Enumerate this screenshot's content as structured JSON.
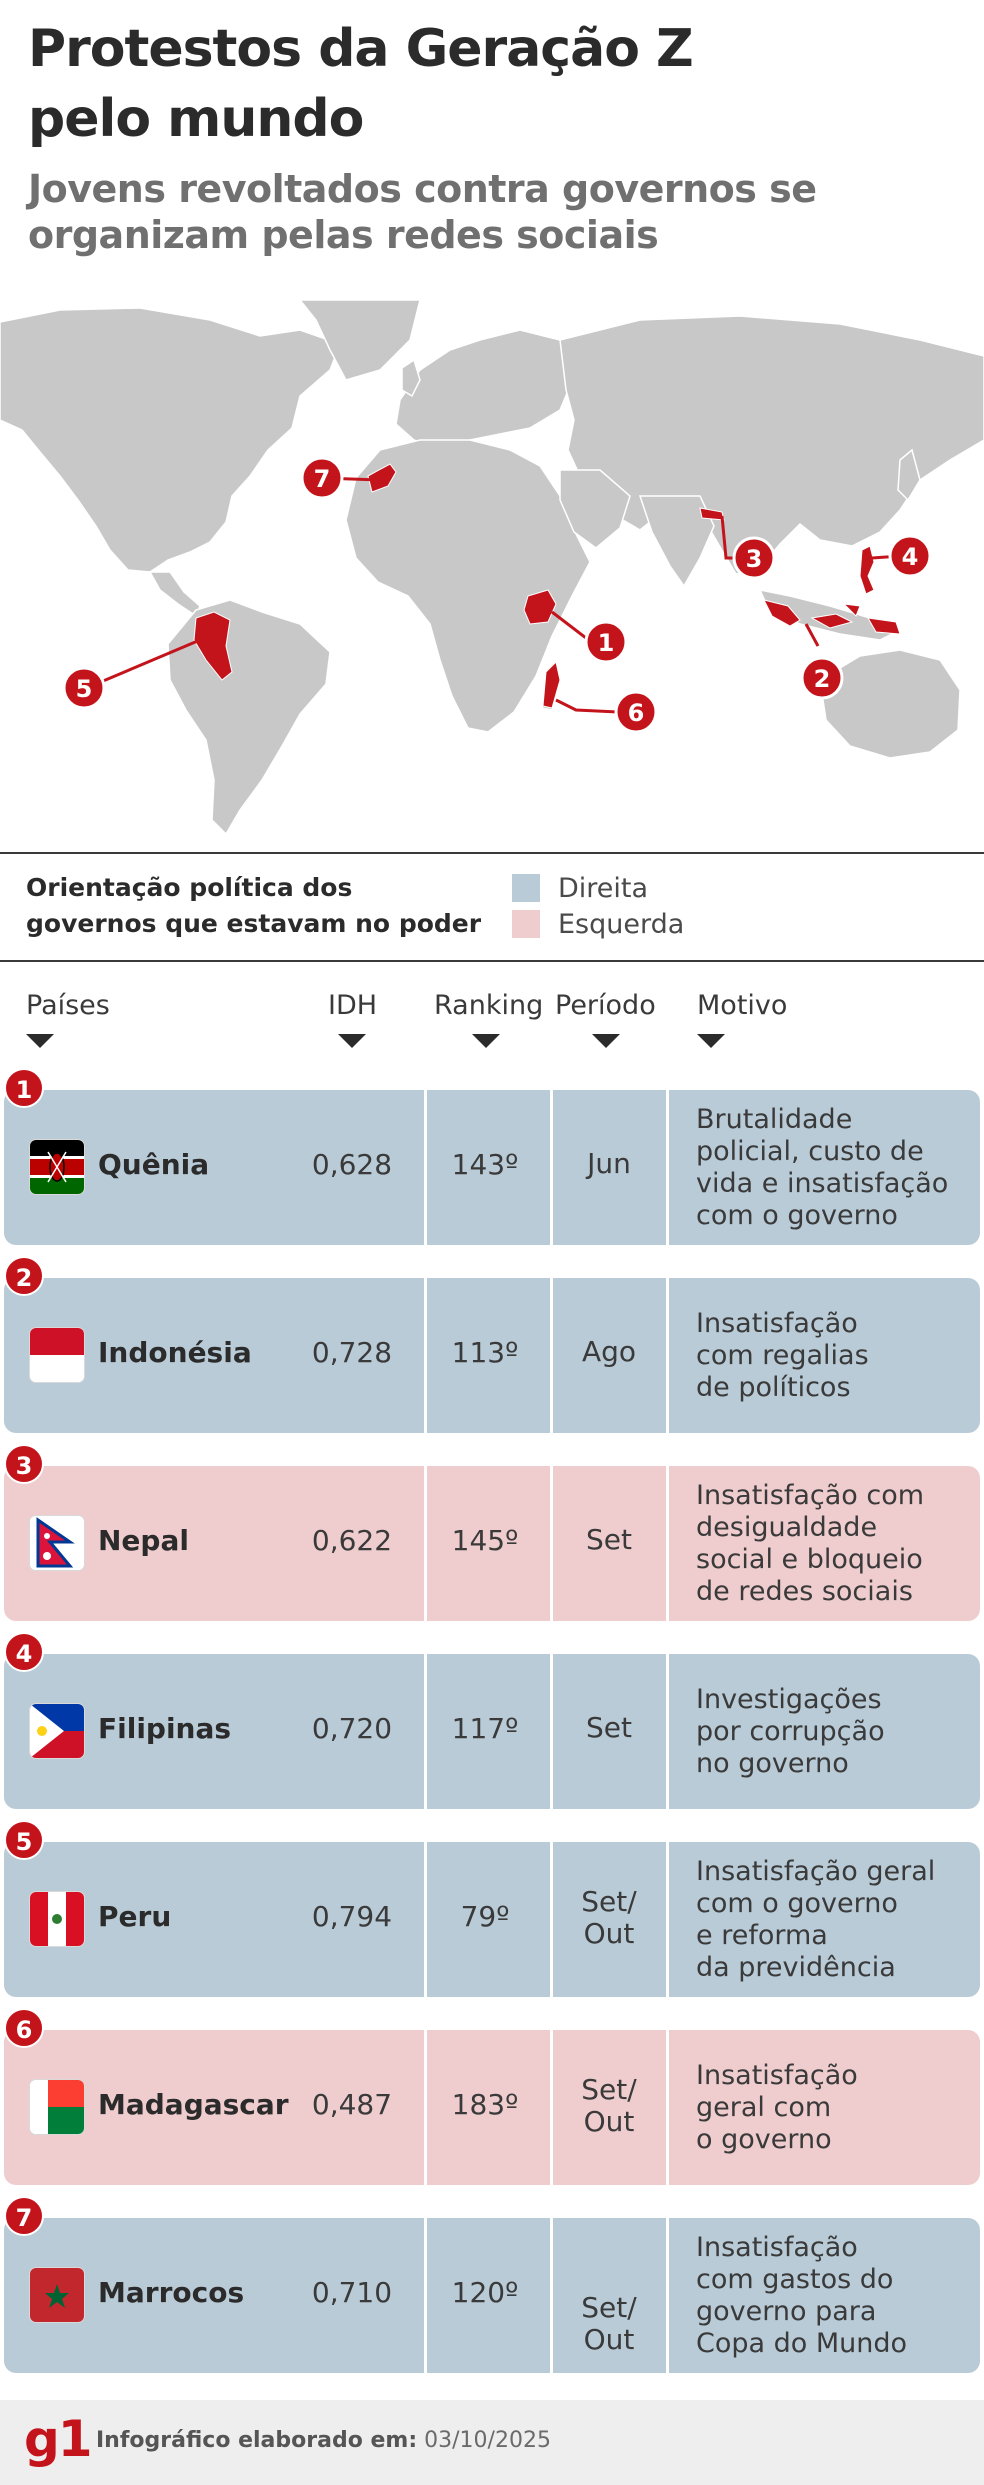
{
  "header": {
    "title_line1": "Protestos da Geração Z",
    "title_line2": "pelo mundo",
    "subtitle_line1": "Jovens revoltados contra governos se",
    "subtitle_line2": "organizam pelas redes sociais"
  },
  "map": {
    "markers": [
      {
        "number": "1",
        "country": "Quênia"
      },
      {
        "number": "2",
        "country": "Indonésia"
      },
      {
        "number": "3",
        "country": "Nepal"
      },
      {
        "number": "4",
        "country": "Filipinas"
      },
      {
        "number": "5",
        "country": "Peru"
      },
      {
        "number": "6",
        "country": "Madagascar"
      },
      {
        "number": "7",
        "country": "Marrocos"
      }
    ]
  },
  "legend": {
    "title_line1": "Orientação política dos",
    "title_line2": "governos que estavam no poder",
    "right_label": "Direita",
    "left_label": "Esquerda",
    "right_color": "#b9cbd7",
    "left_color": "#efcdcf"
  },
  "table": {
    "headers": {
      "country": "Países",
      "idh": "IDH",
      "ranking": "Ranking",
      "period": "Período",
      "motive": "Motivo"
    },
    "rows": [
      {
        "number": "1",
        "country": "Quênia",
        "idh": "0,628",
        "ranking": "143º",
        "period_l1": "Jun",
        "period_l2": "",
        "orientation": "Direita",
        "motive": [
          "Brutalidade",
          "policial, custo de",
          "vida e insatisfação",
          "com o governo"
        ],
        "flag": "kenya-flag-icon"
      },
      {
        "number": "2",
        "country": "Indonésia",
        "idh": "0,728",
        "ranking": "113º",
        "period_l1": "Ago",
        "period_l2": "",
        "orientation": "Direita",
        "motive": [
          "Insatisfação",
          "com regalias",
          "de políticos"
        ],
        "flag": "indonesia-flag-icon"
      },
      {
        "number": "3",
        "country": "Nepal",
        "idh": "0,622",
        "ranking": "145º",
        "period_l1": "Set",
        "period_l2": "",
        "orientation": "Esquerda",
        "motive": [
          "Insatisfação com",
          "desigualdade",
          "social e bloqueio",
          "de redes sociais"
        ],
        "flag": "nepal-flag-icon"
      },
      {
        "number": "4",
        "country": "Filipinas",
        "idh": "0,720",
        "ranking": "117º",
        "period_l1": "Set",
        "period_l2": "",
        "orientation": "Direita",
        "motive": [
          "Investigações",
          "por corrupção",
          "no governo"
        ],
        "flag": "philippines-flag-icon"
      },
      {
        "number": "5",
        "country": "Peru",
        "idh": "0,794",
        "ranking": "79º",
        "period_l1": "Set/",
        "period_l2": "Out",
        "orientation": "Direita",
        "motive": [
          "Insatisfação geral",
          "com o governo",
          "e reforma",
          "da previdência"
        ],
        "flag": "peru-flag-icon"
      },
      {
        "number": "6",
        "country": "Madagascar",
        "idh": "0,487",
        "ranking": "183º",
        "period_l1": "Set/",
        "period_l2": "Out",
        "orientation": "Esquerda",
        "motive": [
          "Insatisfação",
          "geral com",
          "o governo"
        ],
        "flag": "madagascar-flag-icon"
      },
      {
        "number": "7",
        "country": "Marrocos",
        "idh": "0,710",
        "ranking": "120º",
        "period_l1": "Set/",
        "period_l2": "Out",
        "orientation": "Direita",
        "motive": [
          "Insatisfação",
          "com gastos do",
          "governo para",
          "Copa do Mundo"
        ],
        "flag": "morocco-flag-icon"
      }
    ]
  },
  "footer": {
    "logo": "g1",
    "label": "Infográfico elaborado em:",
    "date": "03/10/2025"
  },
  "colors": {
    "accent_red": "#c4141b",
    "land_gray": "#c8c8c8"
  }
}
